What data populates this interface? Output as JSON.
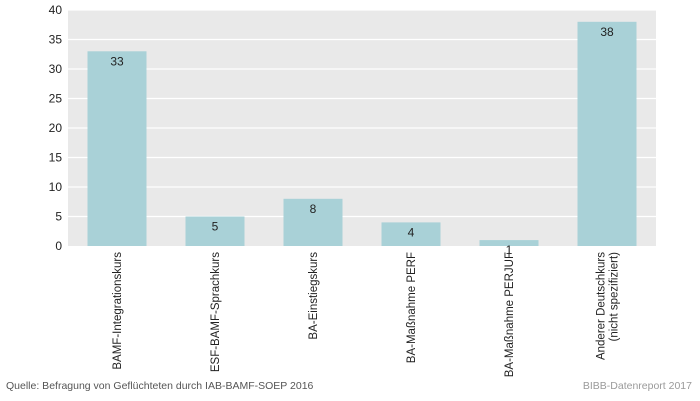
{
  "chart_data": {
    "type": "bar",
    "categories": [
      [
        "BAMF-Integrationskurs"
      ],
      [
        "ESF-BAMF-Sprachkurs"
      ],
      [
        "BA-Einstiegskurs"
      ],
      [
        "BA-Maßnahme PERF"
      ],
      [
        "BA-Maßnahme PERJUF"
      ],
      [
        "Anderer Deutschkurs",
        "(nicht spezifiziert)"
      ]
    ],
    "values": [
      33,
      5,
      8,
      4,
      1,
      38
    ],
    "data_labels": [
      "33",
      "5",
      "8",
      "4",
      "1",
      "38"
    ],
    "ylim": [
      0,
      40
    ],
    "yticks": [
      0,
      5,
      10,
      15,
      20,
      25,
      30,
      35,
      40
    ],
    "grid": true,
    "title": "",
    "xlabel": "",
    "ylabel": "",
    "colors": {
      "bar": "#a9d1d7",
      "plot_background": "#e9e9e9",
      "gridline": "#ffffff",
      "text": "#222222"
    }
  },
  "footer": {
    "source": "Quelle: Befragung von Geflüchteten durch IAB-BAMF-SOEP 2016",
    "credit": "BIBB-Datenreport 2017"
  }
}
